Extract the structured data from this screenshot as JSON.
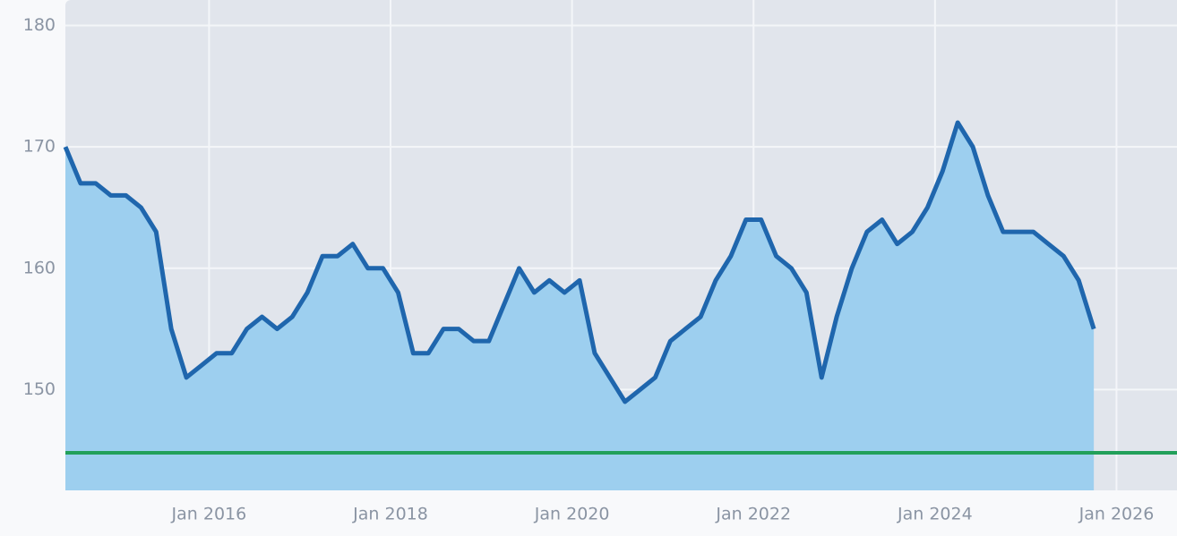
{
  "chart_data": {
    "type": "area",
    "x": [
      "2014-06",
      "2014-08",
      "2014-10",
      "2014-12",
      "2015-02",
      "2015-04",
      "2015-06",
      "2015-08",
      "2015-10",
      "2015-12",
      "2016-02",
      "2016-04",
      "2016-06",
      "2016-08",
      "2016-10",
      "2016-12",
      "2017-02",
      "2017-04",
      "2017-06",
      "2017-08",
      "2017-10",
      "2017-12",
      "2018-02",
      "2018-04",
      "2018-06",
      "2018-08",
      "2018-10",
      "2018-12",
      "2019-02",
      "2019-04",
      "2019-06",
      "2019-08",
      "2019-10",
      "2019-12",
      "2020-02",
      "2020-04",
      "2020-06",
      "2020-08",
      "2020-10",
      "2020-12",
      "2021-02",
      "2021-04",
      "2021-06",
      "2021-08",
      "2021-10",
      "2021-12",
      "2022-02",
      "2022-04",
      "2022-06",
      "2022-08",
      "2022-10",
      "2022-12",
      "2023-02",
      "2023-04",
      "2023-06",
      "2023-08",
      "2023-10",
      "2023-12",
      "2024-02",
      "2024-04",
      "2024-06",
      "2024-08",
      "2024-10",
      "2024-12",
      "2025-02",
      "2025-04",
      "2025-06",
      "2025-08",
      "2025-10"
    ],
    "series": [
      {
        "color": "#1f66ad",
        "fill": "#9dcfef",
        "values": [
          170,
          167,
          167,
          166,
          166,
          165,
          163,
          155,
          151,
          152,
          153,
          153,
          155,
          156,
          155,
          156,
          158,
          161,
          161,
          162,
          160,
          160,
          158,
          153,
          153,
          155,
          155,
          154,
          154,
          157,
          160,
          158,
          159,
          158,
          159,
          153,
          151,
          149,
          150,
          151,
          154,
          155,
          156,
          159,
          161,
          164,
          164,
          161,
          160,
          158,
          151,
          156,
          160,
          163,
          164,
          162,
          163,
          165,
          168,
          172,
          170,
          166,
          163,
          163,
          163,
          162,
          161,
          159,
          155
        ]
      }
    ],
    "reference_line": {
      "value": 144.8,
      "color": "#22a05a"
    },
    "xlim": [
      "2014-06",
      "2026-09"
    ],
    "xticks": [
      {
        "value": "2016-01",
        "label": "Jan 2016"
      },
      {
        "value": "2018-01",
        "label": "Jan 2018"
      },
      {
        "value": "2020-01",
        "label": "Jan 2020"
      },
      {
        "value": "2022-01",
        "label": "Jan 2022"
      },
      {
        "value": "2024-01",
        "label": "Jan 2024"
      },
      {
        "value": "2026-01",
        "label": "Jan 2026"
      }
    ],
    "ylim": [
      141.7,
      182.1
    ],
    "yticks": [
      150,
      160,
      170,
      180
    ],
    "grid": true
  }
}
